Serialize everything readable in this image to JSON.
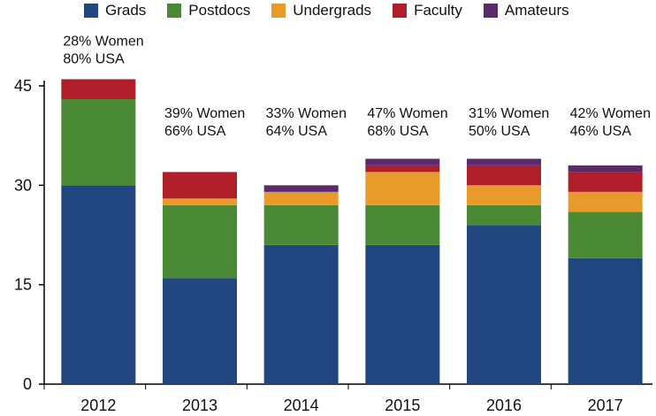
{
  "chart_data": {
    "type": "bar",
    "stacked": true,
    "categories": [
      "2012",
      "2013",
      "2014",
      "2015",
      "2016",
      "2017"
    ],
    "series": [
      {
        "name": "Grads",
        "color": "#22467f",
        "values": [
          30,
          16,
          21,
          21,
          24,
          19
        ]
      },
      {
        "name": "Postdocs",
        "color": "#4a8a34",
        "values": [
          13,
          11,
          6,
          6,
          3,
          7
        ]
      },
      {
        "name": "Undergrads",
        "color": "#e89a2b",
        "values": [
          0,
          1,
          2,
          5,
          3,
          3
        ]
      },
      {
        "name": "Faculty",
        "color": "#b01e2a",
        "values": [
          3,
          4,
          0,
          1,
          3,
          3
        ]
      },
      {
        "name": "Amateurs",
        "color": "#5c2a6a",
        "values": [
          0,
          0,
          1,
          1,
          1,
          1
        ]
      }
    ],
    "annotations": [
      {
        "category": "2012",
        "lines": [
          "28% Women",
          "80% USA"
        ]
      },
      {
        "category": "2013",
        "lines": [
          "39% Women",
          "66% USA"
        ]
      },
      {
        "category": "2014",
        "lines": [
          "33% Women",
          "64% USA"
        ]
      },
      {
        "category": "2015",
        "lines": [
          "47% Women",
          "68% USA"
        ]
      },
      {
        "category": "2016",
        "lines": [
          "31% Women",
          "50% USA"
        ]
      },
      {
        "category": "2017",
        "lines": [
          "42% Women",
          "46% USA"
        ]
      }
    ],
    "yticks": [
      0,
      15,
      30,
      45
    ],
    "ylim": [
      0,
      45
    ],
    "legend_position": "top",
    "grid": false
  }
}
